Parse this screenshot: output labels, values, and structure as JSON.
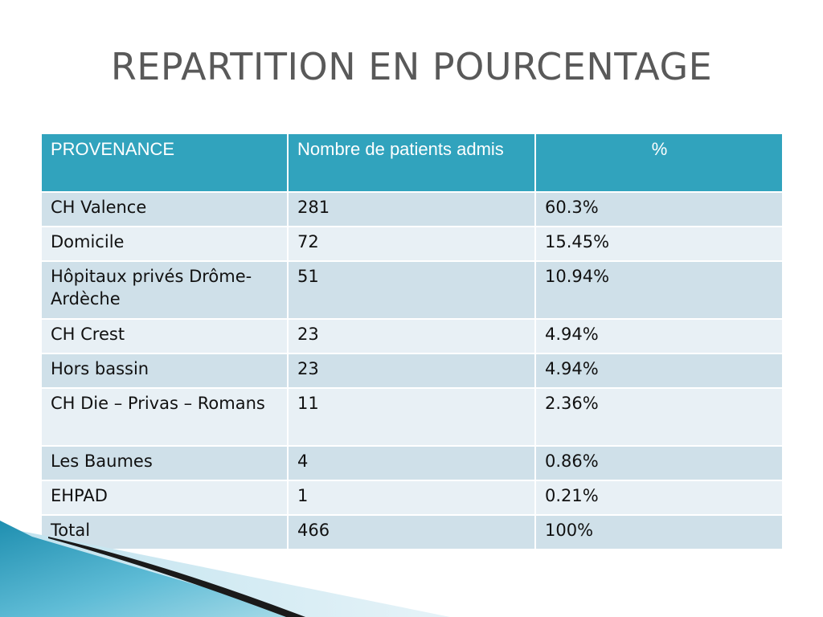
{
  "slide": {
    "title": "REPARTITION EN POURCENTAGE"
  },
  "table": {
    "headers": [
      "PROVENANCE",
      "Nombre de patients admis",
      "%"
    ],
    "rows": [
      [
        "CH Valence",
        "281",
        "60.3%"
      ],
      [
        "Domicile",
        "72",
        "15.45%"
      ],
      [
        "Hôpitaux privés Drôme-Ardèche",
        "51",
        "10.94%"
      ],
      [
        "CH Crest",
        "23",
        "4.94%"
      ],
      [
        "Hors bassin",
        "23",
        "4.94%"
      ],
      [
        "CH Die – Privas – Romans",
        "11",
        "2.36%"
      ],
      [
        "Les Baumes",
        "4",
        "0.86%"
      ],
      [
        "EHPAD",
        "1",
        "0.21%"
      ],
      [
        "Total",
        "466",
        "100%"
      ]
    ]
  },
  "colors": {
    "header_bg": "#31a3bd",
    "row_dark": "#cfe0e9",
    "row_light": "#e8f0f5",
    "title_text": "#595959"
  }
}
